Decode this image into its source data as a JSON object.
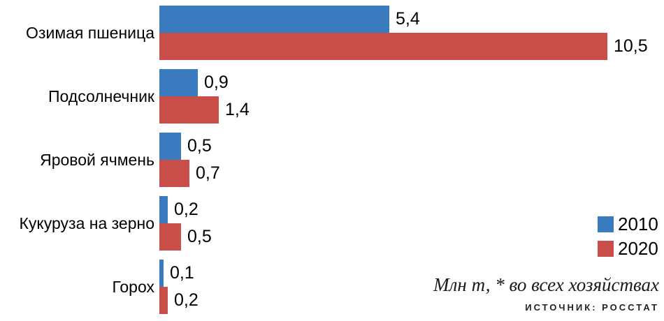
{
  "chart_data": {
    "type": "bar",
    "orientation": "horizontal",
    "categories": [
      "Озимая пшеница",
      "Подсолнечник",
      "Яровой ячмень",
      "Кукуруза на зерно",
      "Горох"
    ],
    "series": [
      {
        "name": "2010",
        "color": "#3a7abe",
        "values": [
          5.4,
          0.9,
          0.5,
          0.2,
          0.1
        ]
      },
      {
        "name": "2020",
        "color": "#c94e4a",
        "values": [
          10.5,
          1.4,
          0.7,
          0.5,
          0.2
        ]
      }
    ],
    "value_labels": [
      [
        "5,4",
        "0,9",
        "0,5",
        "0,2",
        "0,1"
      ],
      [
        "10,5",
        "1,4",
        "0,7",
        "0,5",
        "0,2"
      ]
    ],
    "xlim": [
      0,
      10.5
    ],
    "grid": false,
    "legend_position": "right-middle",
    "title": "",
    "xlabel": "",
    "ylabel": ""
  },
  "legend": {
    "items": [
      {
        "label": "2010",
        "color": "#3a7abe"
      },
      {
        "label": "2020",
        "color": "#c94e4a"
      }
    ]
  },
  "footer": {
    "note": "Млн т, * во всех хозяйствах",
    "source": "ИСТОЧНИК: РОССТАТ"
  },
  "colors": {
    "bar_2010": "#3a7abe",
    "bar_2020": "#c94e4a",
    "background": "#ffffff",
    "text": "#000000"
  }
}
